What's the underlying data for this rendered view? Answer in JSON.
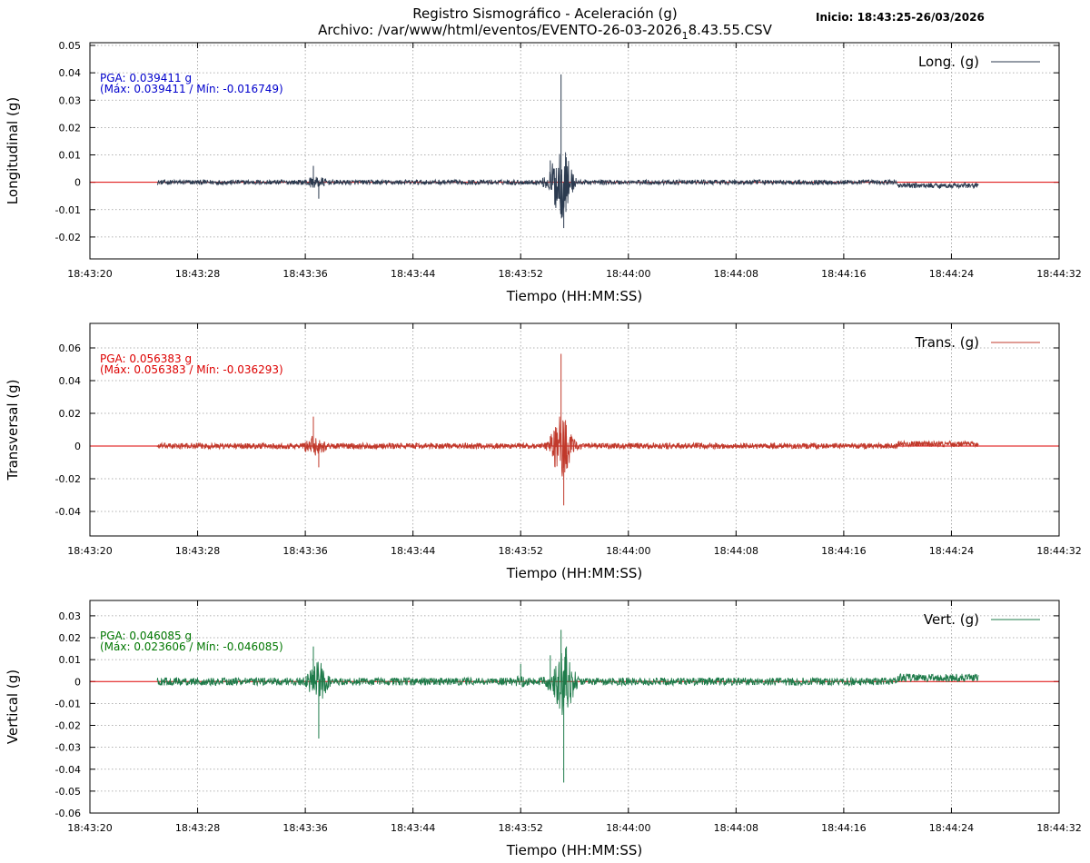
{
  "header": {
    "title_line1": "Registro Sismográfico - Aceleración (g)",
    "title_line2_pre": "Archivo: /var/www/html/eventos/EVENTO-26-03-2026",
    "title_line2_sub": "1",
    "title_line2_post": "8.43.55.CSV",
    "start_info": "Inicio: 18:43:25-26/03/2026"
  },
  "colors": {
    "longitudinal": "#2b3a4f",
    "transversal": "#c0392b",
    "vertical": "#1e7b4a",
    "zero_line": "#dd0000",
    "pga_longitudinal": "#0000cc",
    "pga_transversal": "#dd0000",
    "pga_vertical": "#007700",
    "grid": "#999999"
  },
  "chart_data": [
    {
      "type": "line",
      "ylabel": "Longitudinal (g)",
      "xlabel": "Tiempo (HH:MM:SS)",
      "legend": "Long. (g)",
      "legend_position": "top-right",
      "pga_line1": "PGA: 0.039411 g",
      "pga_line2": "(Máx: 0.039411 / Mín: -0.016749)",
      "ylim": [
        -0.028,
        0.051
      ],
      "yticks": [
        -0.02,
        -0.01,
        0,
        0.01,
        0.02,
        0.03,
        0.04,
        0.05
      ],
      "ytick_labels": [
        "-0.02",
        "-0.01",
        "0",
        "0.01",
        "0.02",
        "0.03",
        "0.04",
        "0.05"
      ],
      "xlim": [
        "18:43:20",
        "18:44:32"
      ],
      "xtick_labels": [
        "18:43:20",
        "18:43:28",
        "18:43:36",
        "18:43:44",
        "18:43:52",
        "18:44:00",
        "18:44:08",
        "18:44:16",
        "18:44:24",
        "18:44:32"
      ],
      "grid": true,
      "series": [
        {
          "x": [
            "18:43:25",
            "18:43:32",
            "18:43:36",
            "18:43:36.6",
            "18:43:37",
            "18:43:44",
            "18:43:52",
            "18:43:54.2",
            "18:43:55",
            "18:43:55.2",
            "18:43:55.4",
            "18:43:56",
            "18:44:08",
            "18:44:20",
            "18:44:21",
            "18:44:26"
          ],
          "y": [
            0,
            0.001,
            0.002,
            0.006,
            -0.006,
            0.001,
            0.002,
            0.008,
            0.039411,
            -0.016749,
            0.006,
            0.002,
            0.001,
            0.001,
            -0.002,
            -0.001
          ]
        }
      ]
    },
    {
      "type": "line",
      "ylabel": "Transversal (g)",
      "xlabel": "Tiempo (HH:MM:SS)",
      "legend": "Trans. (g)",
      "legend_position": "top-right",
      "pga_line1": "PGA: 0.056383 g",
      "pga_line2": "(Máx: 0.056383 / Mín: -0.036293)",
      "ylim": [
        -0.055,
        0.075
      ],
      "yticks": [
        -0.04,
        -0.02,
        0,
        0.02,
        0.04,
        0.06
      ],
      "ytick_labels": [
        "-0.04",
        "-0.02",
        "0",
        "0.02",
        "0.04",
        "0.06"
      ],
      "xlim": [
        "18:43:20",
        "18:44:32"
      ],
      "xtick_labels": [
        "18:43:20",
        "18:43:28",
        "18:43:36",
        "18:43:44",
        "18:43:52",
        "18:44:00",
        "18:44:08",
        "18:44:16",
        "18:44:24",
        "18:44:32"
      ],
      "grid": true,
      "series": [
        {
          "x": [
            "18:43:25",
            "18:43:32",
            "18:43:36",
            "18:43:36.6",
            "18:43:37",
            "18:43:44",
            "18:43:52",
            "18:43:54.2",
            "18:43:55",
            "18:43:55.2",
            "18:43:55.4",
            "18:43:56",
            "18:44:08",
            "18:44:20",
            "18:44:21",
            "18:44:26"
          ],
          "y": [
            0,
            0.002,
            0.003,
            0.018,
            -0.013,
            0.001,
            0.004,
            0.006,
            0.056383,
            -0.036293,
            0.006,
            0.002,
            0.001,
            0.001,
            0.002,
            0.001
          ]
        }
      ]
    },
    {
      "type": "line",
      "ylabel": "Vertical (g)",
      "xlabel": "Tiempo (HH:MM:SS)",
      "legend": "Vert. (g)",
      "legend_position": "top-right",
      "pga_line1": "PGA: 0.046085 g",
      "pga_line2": "(Máx: 0.023606 / Mín: -0.046085)",
      "ylim": [
        -0.06,
        0.037
      ],
      "yticks": [
        -0.06,
        -0.05,
        -0.04,
        -0.03,
        -0.02,
        -0.01,
        0,
        0.01,
        0.02,
        0.03
      ],
      "ytick_labels": [
        "-0.06",
        "-0.05",
        "-0.04",
        "-0.03",
        "-0.02",
        "-0.01",
        "0",
        "0.01",
        "0.02",
        "0.03"
      ],
      "xlim": [
        "18:43:20",
        "18:44:32"
      ],
      "xtick_labels": [
        "18:43:20",
        "18:43:28",
        "18:43:36",
        "18:43:44",
        "18:43:52",
        "18:44:00",
        "18:44:08",
        "18:44:16",
        "18:44:24",
        "18:44:32"
      ],
      "grid": true,
      "series": [
        {
          "x": [
            "18:43:25",
            "18:43:32",
            "18:43:36",
            "18:43:36.6",
            "18:43:37",
            "18:43:44",
            "18:43:52",
            "18:43:54.2",
            "18:43:55",
            "18:43:55.2",
            "18:43:55.4",
            "18:43:56",
            "18:44:08",
            "18:44:20",
            "18:44:21",
            "18:44:26"
          ],
          "y": [
            0,
            0.002,
            0.004,
            0.016,
            -0.026,
            0.002,
            0.008,
            0.012,
            0.023606,
            -0.046085,
            0.016,
            0.004,
            0.002,
            0.003,
            0.003,
            0.001
          ]
        }
      ]
    }
  ]
}
